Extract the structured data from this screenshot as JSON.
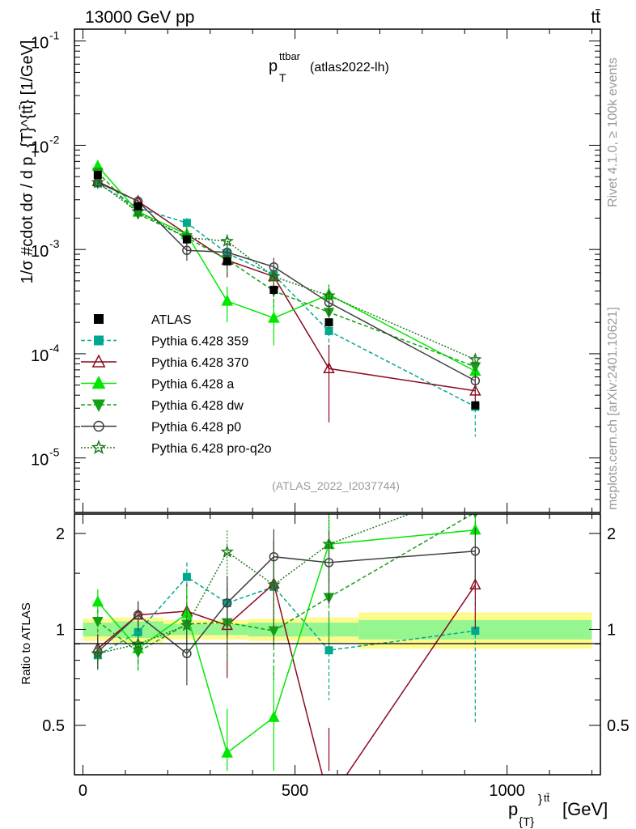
{
  "header": {
    "left": "13000 GeV pp",
    "right": "tt̄"
  },
  "side_labels": {
    "rivet": "Rivet 4.1.0, ≥ 100k events",
    "mcplots": "mcplots.cern.ch [arXiv:2401.10621]"
  },
  "chart_data": {
    "type": "line",
    "title": "p_T^ttbar (atlas2022-lh)",
    "title_main": "p",
    "title_sub": "T",
    "title_sup": "ttbar",
    "title_tail": "(atlas2022-lh)",
    "watermark": "(ATLAS_2022_I2037744)",
    "ylabel": "1/σ #cdot dσ / d p_{T}^{tt̄} [1/GeV]",
    "ylabel_ratio": "Ratio to ATLAS",
    "xlabel_main": "p",
    "xlabel_sub": "{T}",
    "xlabel_sup": "}",
    "xlabel_sup2": "tt̄",
    "xlabel_tail": "[GeV]",
    "xlim": [
      -20,
      1220
    ],
    "ylim_main": [
      3e-06,
      0.13
    ],
    "ylim_ratio": [
      0.35,
      2.3
    ],
    "x_ticks": [
      0,
      500,
      1000
    ],
    "x_tick_labels": [
      "0",
      "500",
      "1000"
    ],
    "y_ticks_main": [
      1e-05,
      0.0001,
      0.001,
      0.01,
      0.1
    ],
    "y_tick_labels_main": [
      {
        "base": "10",
        "exp": "-5"
      },
      {
        "base": "10",
        "exp": "-4"
      },
      {
        "base": "10",
        "exp": "-3"
      },
      {
        "base": "10",
        "exp": "-2"
      },
      {
        "base": "10",
        "exp": "-1"
      }
    ],
    "y_ticks_ratio": [
      0.5,
      1,
      2
    ],
    "y_tick_labels_ratio": [
      "0.5",
      "1",
      "2"
    ],
    "x": [
      35,
      130,
      245,
      340,
      450,
      580,
      925
    ],
    "bin_edges": [
      0,
      70,
      190,
      290,
      390,
      510,
      650,
      1200
    ],
    "data": {
      "name": "ATLAS",
      "values": [
        0.0052,
        0.0026,
        0.00125,
        0.00077,
        0.00041,
        0.0002,
        3.2e-05
      ],
      "ratio_band_stat": [
        0.05,
        0.06,
        0.04,
        0.04,
        0.05,
        0.05,
        0.07
      ],
      "ratio_band_tot": [
        0.08,
        0.09,
        0.07,
        0.07,
        0.08,
        0.09,
        0.13
      ]
    },
    "series": [
      {
        "name": "Pythia 6.428 359",
        "color": "#00a88f",
        "dash": "5,3",
        "marker": "square",
        "values": [
          0.0043,
          0.0025,
          0.0018,
          0.00092,
          0.00057,
          0.000165,
          3.1e-05
        ],
        "err": [
          0.0005,
          0.0003,
          0.0002,
          0.0002,
          0.00015,
          5e-05,
          1.5e-05
        ]
      },
      {
        "name": "Pythia 6.428 370",
        "color": "#8b0a1e",
        "dash": "",
        "marker": "triangle-open",
        "values": [
          0.0045,
          0.0029,
          0.0014,
          0.00079,
          0.00055,
          7.2e-05,
          4.4e-05
        ],
        "err": [
          0.0005,
          0.0003,
          0.0003,
          0.00025,
          0.0002,
          5e-05,
          1.2e-05
        ]
      },
      {
        "name": "Pythia 6.428 a",
        "color": "#00e800",
        "dash": "",
        "marker": "triangle",
        "values": [
          0.0063,
          0.0023,
          0.0014,
          0.00032,
          0.00022,
          0.00037,
          6.8e-05
        ],
        "err": [
          0.0006,
          0.0003,
          0.0003,
          0.00012,
          0.0001,
          9e-05,
          1e-05
        ]
      },
      {
        "name": "Pythia 6.428 dw",
        "color": "#14a014",
        "dash": "5,3",
        "marker": "triangle-down",
        "values": [
          0.0055,
          0.0022,
          0.0013,
          0.0008,
          0.0004,
          0.00025,
          7.5e-05
        ],
        "err": [
          0.0005,
          0.0003,
          0.0003,
          0.0002,
          0.00012,
          8e-05,
          1e-05
        ]
      },
      {
        "name": "Pythia 6.428 p0",
        "color": "#404040",
        "dash": "",
        "marker": "circle-open",
        "values": [
          0.0044,
          0.0029,
          0.00098,
          0.00094,
          0.00068,
          0.00031,
          5.5e-05
        ],
        "err": [
          0.0005,
          0.0003,
          0.0002,
          0.0002,
          0.00015,
          8e-05,
          1e-05
        ]
      },
      {
        "name": "Pythia 6.428 pro-q2o",
        "color": "#1f7a1f",
        "dash": "2,2",
        "marker": "star-open",
        "values": [
          0.0044,
          0.0023,
          0.0013,
          0.0012,
          0.00055,
          0.00036,
          8.8e-05
        ],
        "err": [
          0.0005,
          0.0003,
          0.0002,
          0.0002,
          0.00015,
          0.0001,
          1.2e-05
        ]
      }
    ],
    "ratio_series": [
      {
        "values": [
          0.83,
          0.98,
          1.46,
          1.21,
          1.36,
          0.86,
          0.99
        ]
      },
      {
        "values": [
          0.87,
          1.11,
          1.14,
          1.03,
          1.39,
          0.29,
          1.38
        ]
      },
      {
        "values": [
          1.22,
          0.87,
          1.12,
          0.41,
          0.53,
          1.85,
          2.05
        ]
      },
      {
        "values": [
          1.06,
          0.85,
          1.04,
          1.05,
          0.99,
          1.26,
          2.33
        ]
      },
      {
        "values": [
          0.85,
          1.11,
          0.84,
          1.21,
          1.69,
          1.62,
          1.76
        ]
      },
      {
        "values": [
          0.84,
          0.9,
          1.03,
          1.75,
          1.38,
          1.85,
          2.75
        ]
      }
    ]
  }
}
